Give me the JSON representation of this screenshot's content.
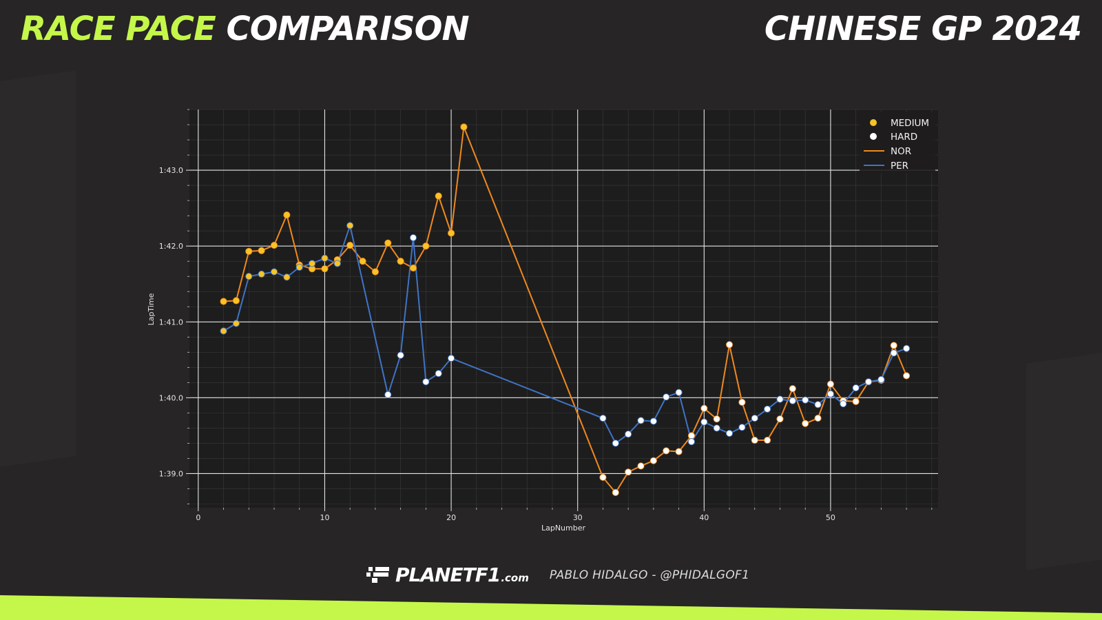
{
  "header": {
    "title_accent": "RACE PACE",
    "title_rest": "COMPARISON",
    "event": "CHINESE GP 2024"
  },
  "footer": {
    "logo_main": "PLANETF1",
    "logo_suffix": ".com",
    "credit": "PABLO HIDALGO - @PHIDALGOF1"
  },
  "colors": {
    "accent": "#c4f74a",
    "medium": "#f7c325",
    "hard": "#ffffff",
    "nor": "#f08a1e",
    "per": "#3f74c6"
  },
  "chart_data": {
    "type": "line",
    "xlabel": "LapNumber",
    "ylabel": "LapTime",
    "xlim": [
      -0.7,
      58.5
    ],
    "ylim": [
      98.55,
      103.8
    ],
    "x_ticks": [
      0,
      10,
      20,
      30,
      40,
      50
    ],
    "y_ticks": [
      {
        "value": 99,
        "label": "1:39.0"
      },
      {
        "value": 100,
        "label": "1:40.0"
      },
      {
        "value": 101,
        "label": "1:41.0"
      },
      {
        "value": 102,
        "label": "1:42.0"
      },
      {
        "value": 103,
        "label": "1:43.0"
      }
    ],
    "grid": true,
    "legend": {
      "position": "top-right",
      "markers": [
        {
          "label": "MEDIUM",
          "compound": "MEDIUM"
        },
        {
          "label": "HARD",
          "compound": "HARD"
        }
      ],
      "lines": [
        {
          "label": "NOR",
          "driver": "NOR"
        },
        {
          "label": "PER",
          "driver": "PER"
        }
      ]
    },
    "series": [
      {
        "name": "NOR",
        "color": "#f08a1e",
        "points": [
          {
            "lap": 2,
            "time": 101.27,
            "compound": "MEDIUM"
          },
          {
            "lap": 3,
            "time": 101.28,
            "compound": "MEDIUM"
          },
          {
            "lap": 4,
            "time": 101.93,
            "compound": "MEDIUM"
          },
          {
            "lap": 5,
            "time": 101.94,
            "compound": "MEDIUM"
          },
          {
            "lap": 6,
            "time": 102.01,
            "compound": "MEDIUM"
          },
          {
            "lap": 7,
            "time": 102.41,
            "compound": "MEDIUM"
          },
          {
            "lap": 8,
            "time": 101.75,
            "compound": "MEDIUM"
          },
          {
            "lap": 9,
            "time": 101.7,
            "compound": "MEDIUM"
          },
          {
            "lap": 10,
            "time": 101.7,
            "compound": "MEDIUM"
          },
          {
            "lap": 11,
            "time": 101.82,
            "compound": "MEDIUM"
          },
          {
            "lap": 12,
            "time": 102.01,
            "compound": "MEDIUM"
          },
          {
            "lap": 13,
            "time": 101.8,
            "compound": "MEDIUM"
          },
          {
            "lap": 14,
            "time": 101.66,
            "compound": "MEDIUM"
          },
          {
            "lap": 15,
            "time": 102.04,
            "compound": "MEDIUM"
          },
          {
            "lap": 16,
            "time": 101.8,
            "compound": "MEDIUM"
          },
          {
            "lap": 17,
            "time": 101.71,
            "compound": "MEDIUM"
          },
          {
            "lap": 18,
            "time": 102.0,
            "compound": "MEDIUM"
          },
          {
            "lap": 19,
            "time": 102.66,
            "compound": "MEDIUM"
          },
          {
            "lap": 20,
            "time": 102.17,
            "compound": "MEDIUM"
          },
          {
            "lap": 21,
            "time": 103.57,
            "compound": "MEDIUM"
          },
          {
            "lap": 32,
            "time": 98.95,
            "compound": "HARD"
          },
          {
            "lap": 33,
            "time": 98.75,
            "compound": "HARD"
          },
          {
            "lap": 34,
            "time": 99.02,
            "compound": "HARD"
          },
          {
            "lap": 35,
            "time": 99.1,
            "compound": "HARD"
          },
          {
            "lap": 36,
            "time": 99.17,
            "compound": "HARD"
          },
          {
            "lap": 37,
            "time": 99.3,
            "compound": "HARD"
          },
          {
            "lap": 38,
            "time": 99.29,
            "compound": "HARD"
          },
          {
            "lap": 39,
            "time": 99.5,
            "compound": "HARD"
          },
          {
            "lap": 40,
            "time": 99.86,
            "compound": "HARD"
          },
          {
            "lap": 41,
            "time": 99.72,
            "compound": "HARD"
          },
          {
            "lap": 42,
            "time": 100.7,
            "compound": "HARD"
          },
          {
            "lap": 43,
            "time": 99.94,
            "compound": "HARD"
          },
          {
            "lap": 44,
            "time": 99.44,
            "compound": "HARD"
          },
          {
            "lap": 45,
            "time": 99.44,
            "compound": "HARD"
          },
          {
            "lap": 46,
            "time": 99.72,
            "compound": "HARD"
          },
          {
            "lap": 47,
            "time": 100.12,
            "compound": "HARD"
          },
          {
            "lap": 48,
            "time": 99.66,
            "compound": "HARD"
          },
          {
            "lap": 49,
            "time": 99.73,
            "compound": "HARD"
          },
          {
            "lap": 50,
            "time": 100.18,
            "compound": "HARD"
          },
          {
            "lap": 51,
            "time": 99.96,
            "compound": "HARD"
          },
          {
            "lap": 52,
            "time": 99.95,
            "compound": "HARD"
          },
          {
            "lap": 53,
            "time": 100.21,
            "compound": "HARD"
          },
          {
            "lap": 54,
            "time": 100.23,
            "compound": "HARD"
          },
          {
            "lap": 55,
            "time": 100.69,
            "compound": "HARD"
          },
          {
            "lap": 56,
            "time": 100.29,
            "compound": "HARD"
          }
        ]
      },
      {
        "name": "PER",
        "color": "#3f74c6",
        "points": [
          {
            "lap": 2,
            "time": 100.88,
            "compound": "MEDIUM"
          },
          {
            "lap": 3,
            "time": 100.98,
            "compound": "MEDIUM"
          },
          {
            "lap": 4,
            "time": 101.6,
            "compound": "MEDIUM"
          },
          {
            "lap": 5,
            "time": 101.63,
            "compound": "MEDIUM"
          },
          {
            "lap": 6,
            "time": 101.66,
            "compound": "MEDIUM"
          },
          {
            "lap": 7,
            "time": 101.59,
            "compound": "MEDIUM"
          },
          {
            "lap": 8,
            "time": 101.72,
            "compound": "MEDIUM"
          },
          {
            "lap": 9,
            "time": 101.77,
            "compound": "MEDIUM"
          },
          {
            "lap": 10,
            "time": 101.84,
            "compound": "MEDIUM"
          },
          {
            "lap": 11,
            "time": 101.77,
            "compound": "MEDIUM"
          },
          {
            "lap": 12,
            "time": 102.27,
            "compound": "MEDIUM"
          },
          {
            "lap": 15,
            "time": 100.04,
            "compound": "HARD"
          },
          {
            "lap": 16,
            "time": 100.56,
            "compound": "HARD"
          },
          {
            "lap": 17,
            "time": 102.11,
            "compound": "HARD"
          },
          {
            "lap": 18,
            "time": 100.21,
            "compound": "HARD"
          },
          {
            "lap": 19,
            "time": 100.32,
            "compound": "HARD"
          },
          {
            "lap": 20,
            "time": 100.52,
            "compound": "HARD"
          },
          {
            "lap": 32,
            "time": 99.73,
            "compound": "HARD"
          },
          {
            "lap": 33,
            "time": 99.4,
            "compound": "HARD"
          },
          {
            "lap": 34,
            "time": 99.52,
            "compound": "HARD"
          },
          {
            "lap": 35,
            "time": 99.7,
            "compound": "HARD"
          },
          {
            "lap": 36,
            "time": 99.69,
            "compound": "HARD"
          },
          {
            "lap": 37,
            "time": 100.01,
            "compound": "HARD"
          },
          {
            "lap": 38,
            "time": 100.07,
            "compound": "HARD"
          },
          {
            "lap": 39,
            "time": 99.42,
            "compound": "HARD"
          },
          {
            "lap": 40,
            "time": 99.68,
            "compound": "HARD"
          },
          {
            "lap": 41,
            "time": 99.6,
            "compound": "HARD"
          },
          {
            "lap": 42,
            "time": 99.53,
            "compound": "HARD"
          },
          {
            "lap": 43,
            "time": 99.61,
            "compound": "HARD"
          },
          {
            "lap": 44,
            "time": 99.73,
            "compound": "HARD"
          },
          {
            "lap": 45,
            "time": 99.85,
            "compound": "HARD"
          },
          {
            "lap": 46,
            "time": 99.98,
            "compound": "HARD"
          },
          {
            "lap": 47,
            "time": 99.96,
            "compound": "HARD"
          },
          {
            "lap": 48,
            "time": 99.97,
            "compound": "HARD"
          },
          {
            "lap": 49,
            "time": 99.91,
            "compound": "HARD"
          },
          {
            "lap": 50,
            "time": 100.05,
            "compound": "HARD"
          },
          {
            "lap": 51,
            "time": 99.92,
            "compound": "HARD"
          },
          {
            "lap": 52,
            "time": 100.13,
            "compound": "HARD"
          },
          {
            "lap": 53,
            "time": 100.21,
            "compound": "HARD"
          },
          {
            "lap": 54,
            "time": 100.24,
            "compound": "HARD"
          },
          {
            "lap": 55,
            "time": 100.59,
            "compound": "HARD"
          },
          {
            "lap": 56,
            "time": 100.65,
            "compound": "HARD"
          }
        ]
      }
    ]
  }
}
